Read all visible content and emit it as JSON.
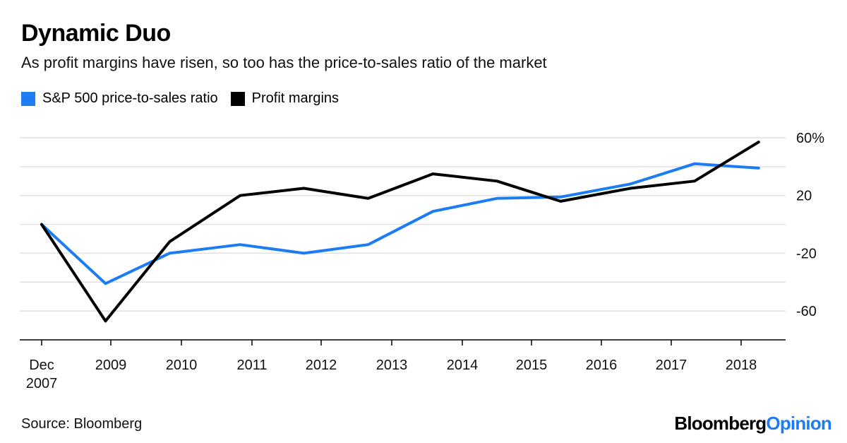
{
  "title": "Dynamic Duo",
  "subtitle": "As profit margins have risen, so too has the price-to-sales ratio of the market",
  "source": "Source: Bloomberg",
  "brand": {
    "part1": "Bloomberg",
    "part2": "Opinion"
  },
  "colors": {
    "ps": "#1b7cf4",
    "margins": "#000000",
    "brand_accent": "#1b7cf4"
  },
  "chart_data": {
    "type": "line",
    "x_labels": [
      {
        "x": "2007-12",
        "lines": [
          "Dec",
          "2007"
        ]
      },
      {
        "x": "2009",
        "lines": [
          "2009"
        ]
      },
      {
        "x": "2010",
        "lines": [
          "2010"
        ]
      },
      {
        "x": "2011",
        "lines": [
          "2011"
        ]
      },
      {
        "x": "2012",
        "lines": [
          "2012"
        ]
      },
      {
        "x": "2013",
        "lines": [
          "2013"
        ]
      },
      {
        "x": "2014",
        "lines": [
          "2014"
        ]
      },
      {
        "x": "2015",
        "lines": [
          "2015"
        ]
      },
      {
        "x": "2016",
        "lines": [
          "2016"
        ]
      },
      {
        "x": "2017",
        "lines": [
          "2017"
        ]
      },
      {
        "x": "2018",
        "lines": [
          "2018"
        ]
      }
    ],
    "y_ticks": [
      {
        "value": 60,
        "label": "60%"
      },
      {
        "value": 20,
        "label": "20"
      },
      {
        "value": -20,
        "label": "-20"
      },
      {
        "value": -60,
        "label": "-60"
      }
    ],
    "ylim": [
      -80,
      60
    ],
    "grid": true,
    "y_axis_side": "right",
    "legend_position": "top-left",
    "series": [
      {
        "name": "S&P 500 price-to-sales ratio",
        "color": "#1b7cf4",
        "points": [
          {
            "x": "2007-12",
            "y": 0
          },
          {
            "x": "2008-12",
            "y": -41
          },
          {
            "x": "2009-11",
            "y": -20
          },
          {
            "x": "2010-11",
            "y": -14
          },
          {
            "x": "2011-10",
            "y": -20
          },
          {
            "x": "2012-09",
            "y": -14
          },
          {
            "x": "2013-08",
            "y": 9
          },
          {
            "x": "2014-07",
            "y": 18
          },
          {
            "x": "2015-06",
            "y": 19
          },
          {
            "x": "2016-06",
            "y": 28
          },
          {
            "x": "2017-05",
            "y": 42
          },
          {
            "x": "2018-04",
            "y": 39
          }
        ]
      },
      {
        "name": "Profit margins",
        "color": "#000000",
        "points": [
          {
            "x": "2007-12",
            "y": 0
          },
          {
            "x": "2008-12",
            "y": -67
          },
          {
            "x": "2009-11",
            "y": -12
          },
          {
            "x": "2010-11",
            "y": 20
          },
          {
            "x": "2011-10",
            "y": 25
          },
          {
            "x": "2012-09",
            "y": 18
          },
          {
            "x": "2013-08",
            "y": 35
          },
          {
            "x": "2014-07",
            "y": 30
          },
          {
            "x": "2015-06",
            "y": 16
          },
          {
            "x": "2016-06",
            "y": 25
          },
          {
            "x": "2017-05",
            "y": 30
          },
          {
            "x": "2018-04",
            "y": 57
          }
        ]
      }
    ]
  }
}
